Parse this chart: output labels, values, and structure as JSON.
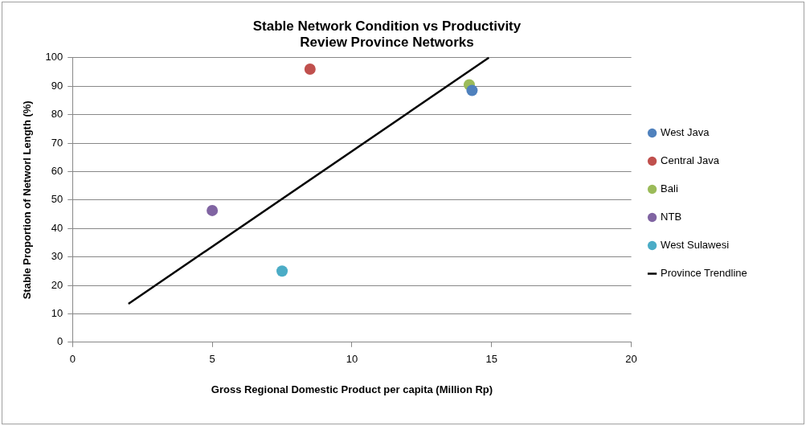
{
  "chart_data": {
    "type": "scatter",
    "title": "Stable Network Condition vs Productivity",
    "subtitle": "Review Province Networks",
    "xlabel": "Gross Regional Domestic Product per capita (Million Rp)",
    "ylabel": "Stable Proportion of Networl Length (%)",
    "series": [
      {
        "name": "West Java",
        "color": "#4f81bd",
        "x": [
          14.3
        ],
        "values": [
          88.5
        ]
      },
      {
        "name": "Central Java",
        "color": "#c0504d",
        "x": [
          8.5
        ],
        "values": [
          96
        ]
      },
      {
        "name": "Bali",
        "color": "#9bbb59",
        "x": [
          14.2
        ],
        "values": [
          90.5
        ]
      },
      {
        "name": "NTB",
        "color": "#8064a2",
        "x": [
          5.0
        ],
        "values": [
          46.3
        ]
      },
      {
        "name": "West Sulawesi",
        "color": "#4bacc6",
        "x": [
          7.5
        ],
        "values": [
          25
        ]
      },
      {
        "name": "Province Trendline",
        "type": "line",
        "marker": "none",
        "color": "#000000",
        "x": [
          2,
          14.9
        ],
        "values": [
          13.5,
          100
        ]
      }
    ],
    "xlim": [
      0,
      20
    ],
    "xticks": [
      0,
      5,
      10,
      15,
      20
    ],
    "ylim": [
      0,
      100
    ],
    "yticks": [
      0,
      10,
      20,
      30,
      40,
      50,
      60,
      70,
      80,
      90,
      100
    ],
    "grid": "y",
    "legend": "right",
    "marker": "circle"
  }
}
